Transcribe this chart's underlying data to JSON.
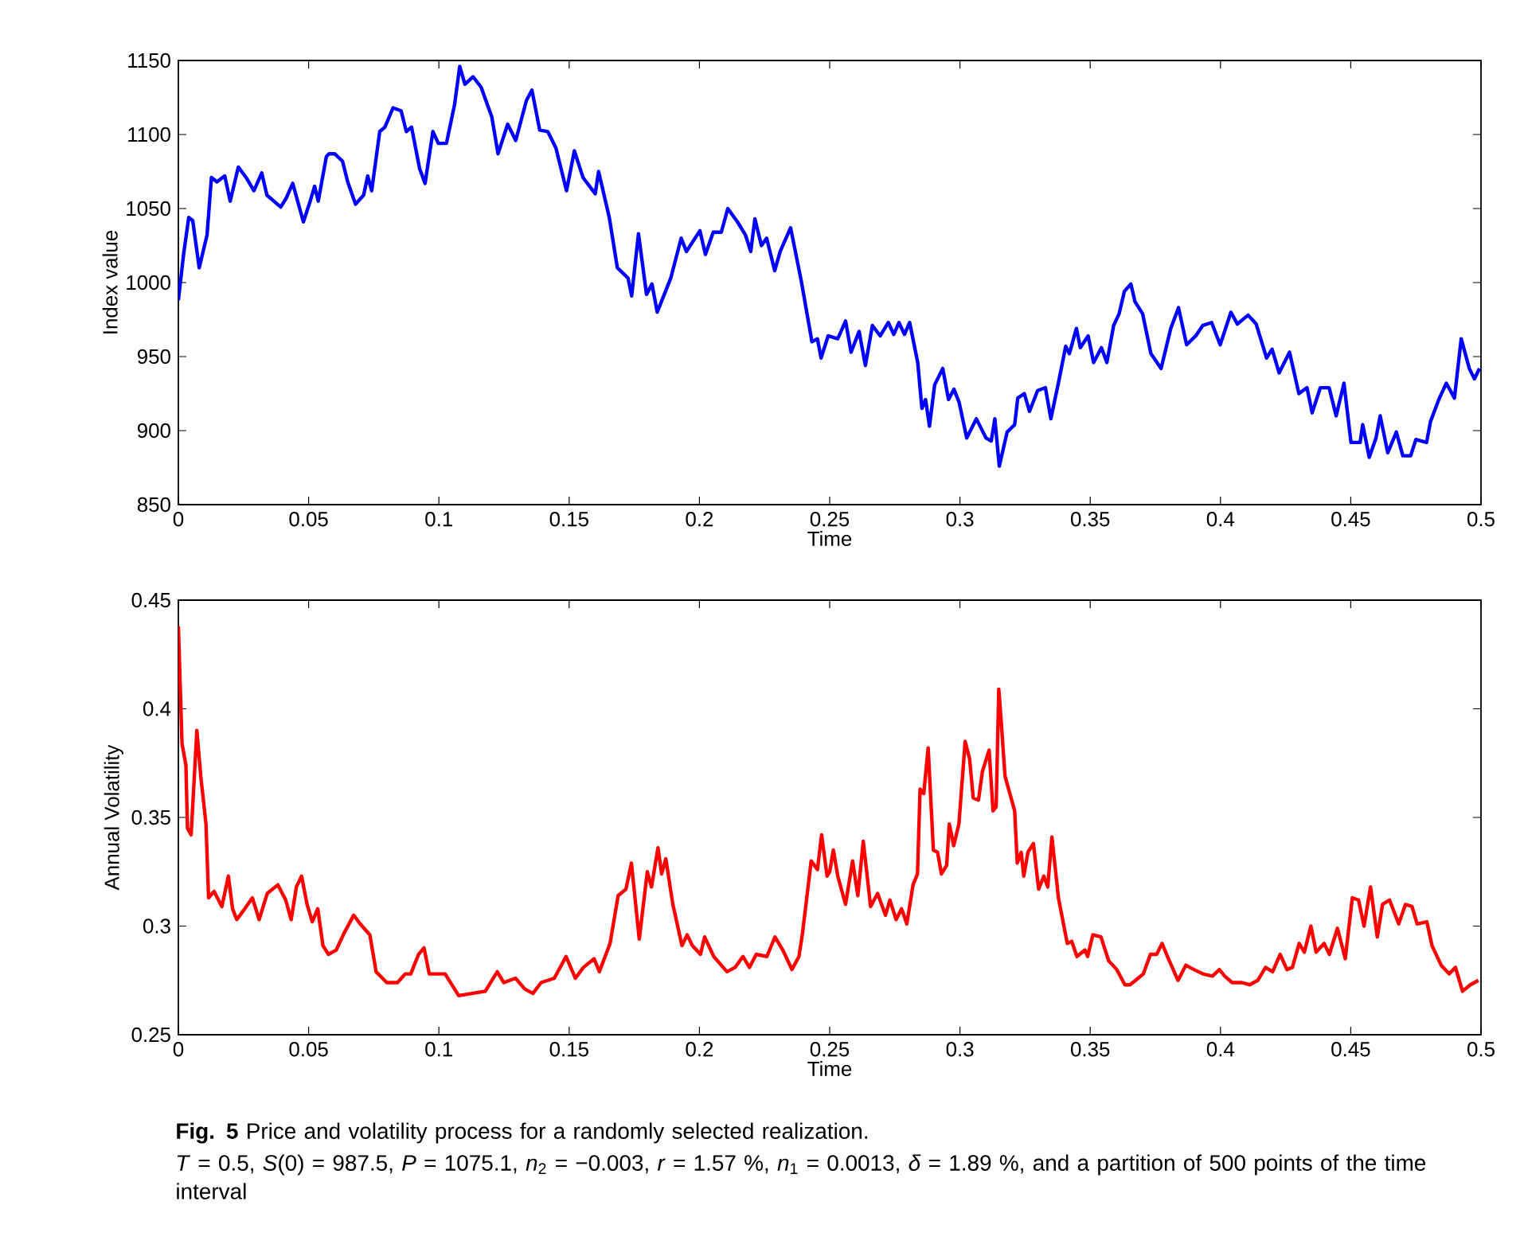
{
  "chart_data": [
    {
      "type": "line",
      "xlabel": "Time",
      "ylabel": "Index value",
      "color": "#0000ff",
      "xlim": [
        0,
        0.5
      ],
      "ylim": [
        850,
        1150
      ],
      "xticks": [
        0,
        0.05,
        0.1,
        0.15,
        0.2,
        0.25,
        0.3,
        0.35,
        0.4,
        0.45,
        0.5
      ],
      "yticks": [
        850,
        900,
        950,
        1000,
        1050,
        1100,
        1150
      ],
      "x": [
        0,
        0.002,
        0.004,
        0.0055,
        0.008,
        0.011,
        0.0127,
        0.0148,
        0.0178,
        0.0199,
        0.023,
        0.026,
        0.029,
        0.032,
        0.034,
        0.0393,
        0.0414,
        0.0439,
        0.048,
        0.0506,
        0.0523,
        0.0537,
        0.0568,
        0.0578,
        0.06,
        0.063,
        0.065,
        0.068,
        0.0711,
        0.0727,
        0.0742,
        0.0773,
        0.0793,
        0.0824,
        0.0855,
        0.0875,
        0.0895,
        0.0926,
        0.0947,
        0.0977,
        0.0998,
        0.1029,
        0.106,
        0.108,
        0.11,
        0.1131,
        0.1162,
        0.1203,
        0.1227,
        0.1264,
        0.1295,
        0.1336,
        0.1357,
        0.1387,
        0.1418,
        0.1449,
        0.149,
        0.152,
        0.1553,
        0.16,
        0.1613,
        0.1654,
        0.1685,
        0.1726,
        0.174,
        0.1766,
        0.1797,
        0.1818,
        0.1838,
        0.189,
        0.193,
        0.195,
        0.2002,
        0.2023,
        0.2053,
        0.2084,
        0.2109,
        0.2146,
        0.2177,
        0.2197,
        0.2213,
        0.2238,
        0.2258,
        0.2289,
        0.231,
        0.235,
        0.2391,
        0.2432,
        0.2453,
        0.2467,
        0.2494,
        0.2531,
        0.2561,
        0.2582,
        0.2613,
        0.2637,
        0.2664,
        0.2694,
        0.2725,
        0.2746,
        0.2766,
        0.2787,
        0.2807,
        0.2838,
        0.2854,
        0.2868,
        0.2883,
        0.2903,
        0.2934,
        0.2956,
        0.2977,
        0.2997,
        0.3026,
        0.3063,
        0.31,
        0.312,
        0.3134,
        0.3151,
        0.3181,
        0.321,
        0.3222,
        0.3247,
        0.3267,
        0.3298,
        0.3328,
        0.3349,
        0.338,
        0.3406,
        0.342,
        0.3447,
        0.3462,
        0.3492,
        0.3513,
        0.3543,
        0.3564,
        0.359,
        0.3611,
        0.3631,
        0.3656,
        0.3672,
        0.3701,
        0.3733,
        0.3772,
        0.3809,
        0.3839,
        0.387,
        0.3905,
        0.3932,
        0.3966,
        0.3999,
        0.404,
        0.4065,
        0.4106,
        0.4137,
        0.4177,
        0.4198,
        0.4225,
        0.4265,
        0.4301,
        0.4332,
        0.4352,
        0.4383,
        0.4417,
        0.4444,
        0.4474,
        0.4501,
        0.4536,
        0.4546,
        0.4571,
        0.4597,
        0.4613,
        0.4642,
        0.4675,
        0.47,
        0.473,
        0.475,
        0.4791,
        0.4806,
        0.4838,
        0.4867,
        0.4898,
        0.4924,
        0.4955,
        0.4975,
        0.4994
      ],
      "values": [
        988,
        1019,
        1044,
        1042,
        1010,
        1032,
        1071,
        1068,
        1072,
        1055,
        1078,
        1071,
        1062,
        1074,
        1059,
        1051,
        1057,
        1067,
        1041,
        1055,
        1065,
        1055,
        1085,
        1087,
        1087,
        1082,
        1068,
        1053,
        1059,
        1072,
        1062,
        1102,
        1105,
        1118,
        1116,
        1102,
        1105,
        1077,
        1067,
        1102,
        1094,
        1094,
        1120,
        1146,
        1134,
        1139,
        1132,
        1112,
        1087,
        1107,
        1096,
        1123,
        1130,
        1103,
        1102,
        1091,
        1062,
        1089,
        1071,
        1060,
        1075,
        1044,
        1010,
        1003,
        991,
        1033,
        992,
        999,
        980,
        1003,
        1030,
        1021,
        1035,
        1019,
        1034,
        1034,
        1050,
        1041,
        1032,
        1021,
        1043,
        1025,
        1030,
        1008,
        1021,
        1037,
        1001,
        960,
        962,
        949,
        964,
        962,
        974,
        953,
        967,
        944,
        971,
        964,
        973,
        965,
        973,
        965,
        973,
        946,
        915,
        921,
        903,
        931,
        942,
        921,
        928,
        919,
        895,
        908,
        895,
        893,
        908,
        876,
        899,
        904,
        922,
        925,
        913,
        927,
        929,
        908,
        934,
        957,
        952,
        969,
        956,
        964,
        946,
        956,
        946,
        971,
        979,
        994,
        999,
        987,
        979,
        952,
        942,
        969,
        983,
        958,
        964,
        971,
        973,
        958,
        980,
        972,
        978,
        972,
        949,
        955,
        939,
        953,
        925,
        929,
        912,
        929,
        929,
        910,
        932,
        892,
        892,
        904,
        882,
        895,
        910,
        885,
        899,
        883,
        883,
        894,
        892,
        906,
        921,
        932,
        922,
        962,
        942,
        935,
        942
      ]
    },
    {
      "type": "line",
      "xlabel": "Time",
      "ylabel": "Annual Volatility",
      "color": "#ff0000",
      "xlim": [
        0,
        0.5
      ],
      "ylim": [
        0.25,
        0.45
      ],
      "xticks": [
        0,
        0.05,
        0.1,
        0.15,
        0.2,
        0.25,
        0.3,
        0.35,
        0.4,
        0.45,
        0.5
      ],
      "yticks": [
        0.25,
        0.3,
        0.35,
        0.4,
        0.45
      ],
      "x": [
        0,
        0.0014,
        0.0029,
        0.0035,
        0.0049,
        0.0071,
        0.0086,
        0.0106,
        0.0116,
        0.0137,
        0.0167,
        0.0192,
        0.0208,
        0.0224,
        0.0249,
        0.0284,
        0.031,
        0.0341,
        0.0382,
        0.0412,
        0.0433,
        0.0453,
        0.0473,
        0.0494,
        0.0514,
        0.0535,
        0.0555,
        0.0576,
        0.0606,
        0.0637,
        0.0673,
        0.0698,
        0.0735,
        0.0759,
        0.08,
        0.0841,
        0.0871,
        0.0892,
        0.0922,
        0.0943,
        0.0963,
        0.0994,
        0.1024,
        0.1076,
        0.1127,
        0.1178,
        0.1224,
        0.1249,
        0.1294,
        0.133,
        0.1361,
        0.1392,
        0.1443,
        0.1488,
        0.1524,
        0.1555,
        0.1596,
        0.1616,
        0.1657,
        0.1688,
        0.1718,
        0.1739,
        0.1769,
        0.18,
        0.1816,
        0.1841,
        0.1855,
        0.1871,
        0.1898,
        0.1933,
        0.1953,
        0.1973,
        0.2004,
        0.202,
        0.2055,
        0.2106,
        0.2137,
        0.2167,
        0.2192,
        0.2218,
        0.2259,
        0.229,
        0.232,
        0.2355,
        0.2382,
        0.2396,
        0.2429,
        0.2453,
        0.2469,
        0.249,
        0.25,
        0.2514,
        0.2531,
        0.2561,
        0.2588,
        0.2608,
        0.2629,
        0.2657,
        0.2684,
        0.2714,
        0.2731,
        0.2755,
        0.2776,
        0.2796,
        0.282,
        0.2837,
        0.2847,
        0.2861,
        0.2878,
        0.2898,
        0.2914,
        0.2929,
        0.2949,
        0.2959,
        0.2976,
        0.2996,
        0.302,
        0.3037,
        0.3051,
        0.3071,
        0.3086,
        0.3112,
        0.3127,
        0.3139,
        0.3149,
        0.3159,
        0.3173,
        0.321,
        0.322,
        0.3235,
        0.3245,
        0.3261,
        0.3282,
        0.3302,
        0.3322,
        0.3337,
        0.3353,
        0.3378,
        0.3412,
        0.3429,
        0.3449,
        0.348,
        0.349,
        0.351,
        0.3541,
        0.3571,
        0.3602,
        0.3633,
        0.3653,
        0.3684,
        0.3704,
        0.3731,
        0.3755,
        0.3776,
        0.38,
        0.3837,
        0.3867,
        0.3898,
        0.3933,
        0.3969,
        0.3996,
        0.4016,
        0.4045,
        0.4082,
        0.4112,
        0.4143,
        0.4173,
        0.42,
        0.4229,
        0.4255,
        0.4276,
        0.4302,
        0.4322,
        0.4347,
        0.4367,
        0.4398,
        0.4418,
        0.4449,
        0.4479,
        0.4506,
        0.453,
        0.4551,
        0.4576,
        0.4602,
        0.4622,
        0.4649,
        0.4684,
        0.471,
        0.4735,
        0.4755,
        0.4792,
        0.4812,
        0.4847,
        0.4878,
        0.4902,
        0.4929,
        0.4959,
        0.499
      ],
      "values": [
        0.438,
        0.384,
        0.374,
        0.345,
        0.342,
        0.39,
        0.369,
        0.347,
        0.313,
        0.316,
        0.309,
        0.323,
        0.308,
        0.303,
        0.307,
        0.313,
        0.303,
        0.315,
        0.319,
        0.312,
        0.303,
        0.318,
        0.323,
        0.31,
        0.302,
        0.308,
        0.291,
        0.287,
        0.289,
        0.297,
        0.305,
        0.301,
        0.296,
        0.279,
        0.274,
        0.274,
        0.278,
        0.278,
        0.287,
        0.29,
        0.278,
        0.278,
        0.278,
        0.268,
        0.269,
        0.27,
        0.279,
        0.274,
        0.276,
        0.271,
        0.269,
        0.274,
        0.276,
        0.286,
        0.276,
        0.281,
        0.285,
        0.279,
        0.292,
        0.314,
        0.317,
        0.329,
        0.294,
        0.325,
        0.318,
        0.336,
        0.324,
        0.331,
        0.31,
        0.291,
        0.296,
        0.291,
        0.287,
        0.295,
        0.286,
        0.279,
        0.281,
        0.286,
        0.281,
        0.287,
        0.286,
        0.295,
        0.289,
        0.28,
        0.286,
        0.297,
        0.33,
        0.326,
        0.342,
        0.323,
        0.325,
        0.335,
        0.323,
        0.31,
        0.33,
        0.314,
        0.339,
        0.309,
        0.315,
        0.305,
        0.312,
        0.303,
        0.308,
        0.301,
        0.319,
        0.324,
        0.363,
        0.361,
        0.382,
        0.335,
        0.334,
        0.324,
        0.328,
        0.347,
        0.337,
        0.347,
        0.385,
        0.377,
        0.359,
        0.358,
        0.371,
        0.381,
        0.353,
        0.355,
        0.409,
        0.393,
        0.369,
        0.353,
        0.329,
        0.334,
        0.323,
        0.334,
        0.338,
        0.317,
        0.323,
        0.318,
        0.341,
        0.313,
        0.292,
        0.293,
        0.286,
        0.289,
        0.286,
        0.296,
        0.295,
        0.284,
        0.28,
        0.273,
        0.273,
        0.276,
        0.278,
        0.287,
        0.287,
        0.292,
        0.285,
        0.275,
        0.282,
        0.28,
        0.278,
        0.277,
        0.28,
        0.277,
        0.274,
        0.274,
        0.273,
        0.275,
        0.281,
        0.279,
        0.287,
        0.28,
        0.281,
        0.292,
        0.288,
        0.3,
        0.288,
        0.292,
        0.287,
        0.299,
        0.285,
        0.313,
        0.312,
        0.3,
        0.318,
        0.295,
        0.31,
        0.312,
        0.301,
        0.31,
        0.309,
        0.301,
        0.302,
        0.291,
        0.282,
        0.278,
        0.281,
        0.27,
        0.273,
        0.275
      ],
      "annotations": [
        "**Fig. 5**  Price and volatility process for a randomly selected realization.",
        "*T* = 0.5, *S*(0) = 987.5, *P* = 1075.1, *n*$_{2}$ = −0.003, *r* = 1.57 %, *n*$_{1}$ = 0.0013, *δ* = 1.89 %, and a partition of 500 points of the time interval"
      ]
    }
  ]
}
